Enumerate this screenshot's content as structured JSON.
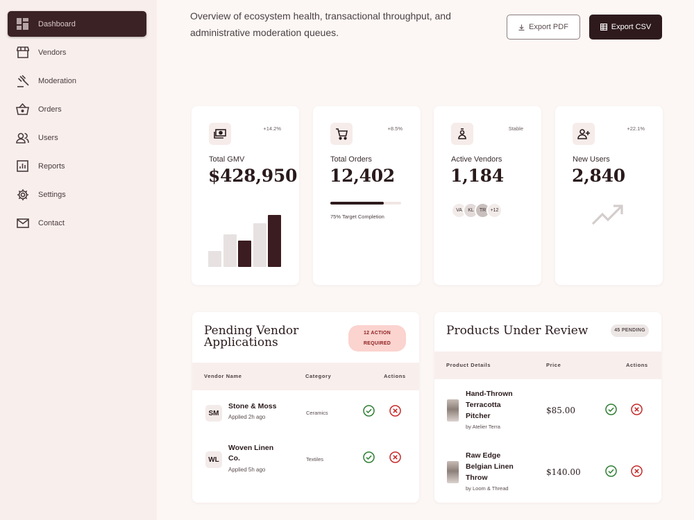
{
  "sidebar": {
    "items": [
      {
        "label": "Dashboard",
        "icon": "dashboard-icon"
      },
      {
        "label": "Vendors",
        "icon": "store-icon"
      },
      {
        "label": "Moderation",
        "icon": "gavel-icon"
      },
      {
        "label": "Orders",
        "icon": "basket-icon"
      },
      {
        "label": "Users",
        "icon": "users-icon"
      },
      {
        "label": "Reports",
        "icon": "reports-icon"
      },
      {
        "label": "Settings",
        "icon": "gear-icon"
      },
      {
        "label": "Contact",
        "icon": "mail-icon"
      }
    ]
  },
  "header": {
    "intro": "Overview of ecosystem health, transactional throughput, and administrative moderation queues.",
    "export_pdf": "Export PDF",
    "export_csv": "Export CSV"
  },
  "stats": {
    "gmv": {
      "label": "Total GMV",
      "value": "$428,950",
      "badge": "+14.2%",
      "bars": [
        0.3,
        0.63,
        0.5,
        0.84,
        1.0
      ]
    },
    "orders": {
      "label": "Total Orders",
      "value": "12,402",
      "badge": "+8.5%",
      "progress": 0.75,
      "progress_text": "75% Target Completion"
    },
    "vendors": {
      "label": "Active Vendors",
      "value": "1,184",
      "badge": "Stable",
      "avatars": [
        "VA",
        "KL",
        "TR",
        "+12"
      ]
    },
    "users": {
      "label": "New Users",
      "value": "2,840",
      "badge": "+22.1%"
    }
  },
  "pending_vendors": {
    "title": "Pending Vendor Applications",
    "tag": "12 ACTION REQUIRED",
    "columns": [
      "Vendor Name",
      "Category",
      "Actions"
    ],
    "rows": [
      {
        "initials": "SM",
        "name": "Stone & Moss",
        "sub": "Applied 2h ago",
        "category": "Ceramics"
      },
      {
        "initials": "WL",
        "name": "Woven Linen Co.",
        "sub": "Applied 5h ago",
        "category": "Textiles"
      }
    ]
  },
  "products_review": {
    "title": "Products Under Review",
    "tag": "45 PENDING",
    "columns": [
      "Product Details",
      "Price",
      "Actions"
    ],
    "rows": [
      {
        "name": "Hand-Thrown Terracotta Pitcher",
        "by": "by Atelier Terra",
        "price": "$85.00"
      },
      {
        "name": "Raw Edge Belgian Linen Throw",
        "by": "by Loom & Thread",
        "price": "$140.00"
      }
    ]
  },
  "colors": {
    "accent": "#2e1a1d",
    "approve": "#2e7d32",
    "reject": "#c62828"
  }
}
